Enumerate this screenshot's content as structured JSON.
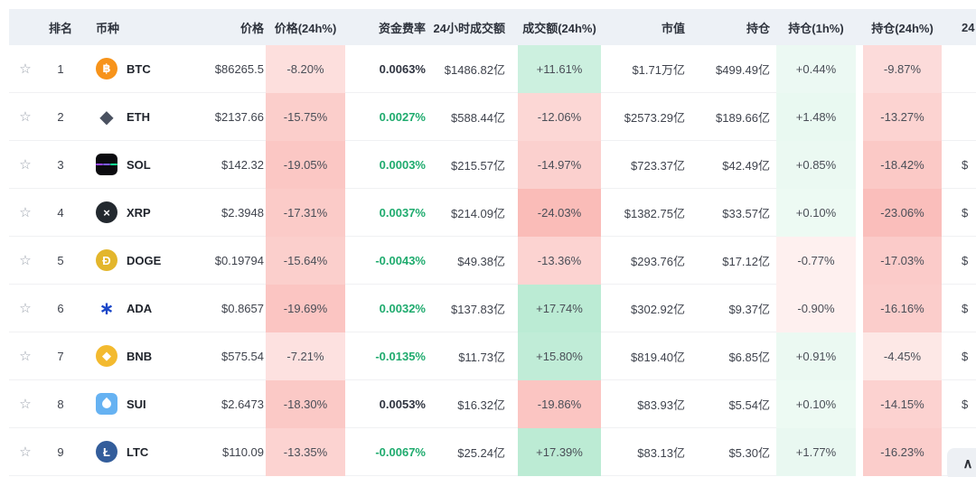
{
  "header": {
    "columns": [
      {
        "label": ""
      },
      {
        "label": "排名"
      },
      {
        "label": "币种"
      },
      {
        "label": "价格"
      },
      {
        "label": "价格(24h%)"
      },
      {
        "label": "资金费率"
      },
      {
        "label": "24小时成交额"
      },
      {
        "label": "成交额(24h%)"
      },
      {
        "label": "市值"
      },
      {
        "label": "持仓"
      },
      {
        "label": "持仓(1h%)"
      },
      {
        "label": ""
      },
      {
        "label": "持仓(24h%)"
      },
      {
        "label": "24"
      }
    ]
  },
  "ui": {
    "star_glyph": "☆",
    "scroll_top_glyph": "∧"
  },
  "colors": {
    "positive_rgb": "35,190,115",
    "negative_rgb": "242,84,75",
    "funding_green": "#1fab6e",
    "funding_dark": "#2f3440",
    "header_bg": "#edf1f6"
  },
  "icon_defs": {
    "btc": {
      "shape": "circle",
      "bg": "#f7931a",
      "fg": "#ffffff",
      "glyph": "฿"
    },
    "eth": {
      "shape": "plain",
      "bg": "",
      "fg": "#4a5160",
      "glyph": "◆"
    },
    "sol": {
      "shape": "square",
      "bg": "#0b0b0f",
      "fg": "#ffffff",
      "glyph": "",
      "bars": [
        "#9945ff",
        "#7a5cf0",
        "#14f195"
      ]
    },
    "xrp": {
      "shape": "circle",
      "bg": "#23292f",
      "fg": "#ffffff",
      "glyph": "×"
    },
    "doge": {
      "shape": "circle",
      "bg": "#e3b62c",
      "fg": "#ffffff",
      "glyph": "Ð"
    },
    "ada": {
      "shape": "plain",
      "bg": "",
      "fg": "#1b47c8",
      "glyph": "∗"
    },
    "bnb": {
      "shape": "circle",
      "bg": "#f3ba2f",
      "fg": "#ffffff",
      "glyph": "◆"
    },
    "sui": {
      "shape": "square",
      "bg": "#66b2f2",
      "fg": "#ffffff",
      "glyph": "",
      "drop": true
    },
    "ltc": {
      "shape": "circle",
      "bg": "#335d9b",
      "fg": "#ffffff",
      "glyph": "Ł"
    }
  },
  "rows": [
    {
      "rank": "1",
      "icon": "btc",
      "symbol": "BTC",
      "price": "$86265.5",
      "price_24h": {
        "v": -8.2,
        "t": "-8.20%"
      },
      "funding": {
        "t": "0.0063%",
        "c": "dark"
      },
      "volume": "$1486.82亿",
      "volume_24h": {
        "v": 11.61,
        "t": "+11.61%"
      },
      "market_cap": "$1.71万亿",
      "open_interest": "$499.49亿",
      "oi_1h": {
        "v": 0.44,
        "t": "+0.44%"
      },
      "oi_24h": {
        "v": -9.87,
        "t": "-9.87%"
      },
      "last": ""
    },
    {
      "rank": "2",
      "icon": "eth",
      "symbol": "ETH",
      "price": "$2137.66",
      "price_24h": {
        "v": -15.75,
        "t": "-15.75%"
      },
      "funding": {
        "t": "0.0027%",
        "c": "green"
      },
      "volume": "$588.44亿",
      "volume_24h": {
        "v": -12.06,
        "t": "-12.06%"
      },
      "market_cap": "$2573.29亿",
      "open_interest": "$189.66亿",
      "oi_1h": {
        "v": 1.48,
        "t": "+1.48%"
      },
      "oi_24h": {
        "v": -13.27,
        "t": "-13.27%"
      },
      "last": ""
    },
    {
      "rank": "3",
      "icon": "sol",
      "symbol": "SOL",
      "price": "$142.32",
      "price_24h": {
        "v": -19.05,
        "t": "-19.05%"
      },
      "funding": {
        "t": "0.0003%",
        "c": "green"
      },
      "volume": "$215.57亿",
      "volume_24h": {
        "v": -14.97,
        "t": "-14.97%"
      },
      "market_cap": "$723.37亿",
      "open_interest": "$42.49亿",
      "oi_1h": {
        "v": 0.85,
        "t": "+0.85%"
      },
      "oi_24h": {
        "v": -18.42,
        "t": "-18.42%"
      },
      "last": "$"
    },
    {
      "rank": "4",
      "icon": "xrp",
      "symbol": "XRP",
      "price": "$2.3948",
      "price_24h": {
        "v": -17.31,
        "t": "-17.31%"
      },
      "funding": {
        "t": "0.0037%",
        "c": "green"
      },
      "volume": "$214.09亿",
      "volume_24h": {
        "v": -24.03,
        "t": "-24.03%"
      },
      "market_cap": "$1382.75亿",
      "open_interest": "$33.57亿",
      "oi_1h": {
        "v": 0.1,
        "t": "+0.10%"
      },
      "oi_24h": {
        "v": -23.06,
        "t": "-23.06%"
      },
      "last": "$"
    },
    {
      "rank": "5",
      "icon": "doge",
      "symbol": "DOGE",
      "price": "$0.19794",
      "price_24h": {
        "v": -15.64,
        "t": "-15.64%"
      },
      "funding": {
        "t": "-0.0043%",
        "c": "green"
      },
      "volume": "$49.38亿",
      "volume_24h": {
        "v": -13.36,
        "t": "-13.36%"
      },
      "market_cap": "$293.76亿",
      "open_interest": "$17.12亿",
      "oi_1h": {
        "v": -0.77,
        "t": "-0.77%"
      },
      "oi_24h": {
        "v": -17.03,
        "t": "-17.03%"
      },
      "last": "$"
    },
    {
      "rank": "6",
      "icon": "ada",
      "symbol": "ADA",
      "price": "$0.8657",
      "price_24h": {
        "v": -19.69,
        "t": "-19.69%"
      },
      "funding": {
        "t": "0.0032%",
        "c": "green"
      },
      "volume": "$137.83亿",
      "volume_24h": {
        "v": 17.74,
        "t": "+17.74%"
      },
      "market_cap": "$302.92亿",
      "open_interest": "$9.37亿",
      "oi_1h": {
        "v": -0.9,
        "t": "-0.90%"
      },
      "oi_24h": {
        "v": -16.16,
        "t": "-16.16%"
      },
      "last": "$"
    },
    {
      "rank": "7",
      "icon": "bnb",
      "symbol": "BNB",
      "price": "$575.54",
      "price_24h": {
        "v": -7.21,
        "t": "-7.21%"
      },
      "funding": {
        "t": "-0.0135%",
        "c": "green"
      },
      "volume": "$11.73亿",
      "volume_24h": {
        "v": 15.8,
        "t": "+15.80%"
      },
      "market_cap": "$819.40亿",
      "open_interest": "$6.85亿",
      "oi_1h": {
        "v": 0.91,
        "t": "+0.91%"
      },
      "oi_24h": {
        "v": -4.45,
        "t": "-4.45%"
      },
      "last": "$"
    },
    {
      "rank": "8",
      "icon": "sui",
      "symbol": "SUI",
      "price": "$2.6473",
      "price_24h": {
        "v": -18.3,
        "t": "-18.30%"
      },
      "funding": {
        "t": "0.0053%",
        "c": "dark"
      },
      "volume": "$16.32亿",
      "volume_24h": {
        "v": -19.86,
        "t": "-19.86%"
      },
      "market_cap": "$83.93亿",
      "open_interest": "$5.54亿",
      "oi_1h": {
        "v": 0.1,
        "t": "+0.10%"
      },
      "oi_24h": {
        "v": -14.15,
        "t": "-14.15%"
      },
      "last": "$"
    },
    {
      "rank": "9",
      "icon": "ltc",
      "symbol": "LTC",
      "price": "$110.09",
      "price_24h": {
        "v": -13.35,
        "t": "-13.35%"
      },
      "funding": {
        "t": "-0.0067%",
        "c": "green"
      },
      "volume": "$25.24亿",
      "volume_24h": {
        "v": 17.39,
        "t": "+17.39%"
      },
      "market_cap": "$83.13亿",
      "open_interest": "$5.30亿",
      "oi_1h": {
        "v": 1.77,
        "t": "+1.77%"
      },
      "oi_24h": {
        "v": -16.23,
        "t": "-16.23%"
      },
      "last": ""
    }
  ]
}
